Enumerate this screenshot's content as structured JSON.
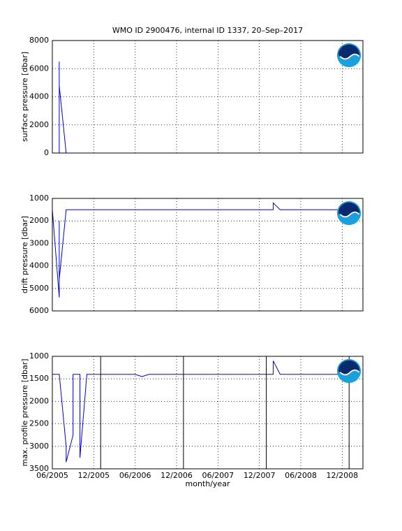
{
  "chart_data": [
    {
      "type": "line",
      "title": "WMO ID 2900476, internal ID 1337, 20–Sep–2017",
      "y_label": "surface pressure [dbar]",
      "xlim": [
        "2005-06",
        "2009-03"
      ],
      "xticks": [
        "2005-06",
        "2005-12",
        "2006-06",
        "2006-12",
        "2007-06",
        "2007-12",
        "2008-06",
        "2008-12"
      ],
      "ylim": [
        0,
        8000
      ],
      "yticks": [
        0,
        2000,
        4000,
        6000,
        8000
      ],
      "grid": true,
      "series": [
        {
          "color": "#0000cc",
          "x": [
            "2005-07",
            "2005-07",
            "2005-07",
            "2005-07",
            "2005-08",
            "2009-02"
          ],
          "values": [
            0,
            6500,
            0,
            4800,
            0,
            0
          ]
        }
      ]
    },
    {
      "type": "line",
      "y_label": "drift pressure [dbar]",
      "xlim": [
        "2005-06",
        "2009-03"
      ],
      "xticks": [
        "2005-06",
        "2005-12",
        "2006-06",
        "2006-12",
        "2007-06",
        "2007-12",
        "2008-06",
        "2008-12"
      ],
      "ylim": [
        6000,
        1000
      ],
      "yticks": [
        1000,
        2000,
        3000,
        4000,
        5000,
        6000
      ],
      "grid": true,
      "series": [
        {
          "color": "#0000cc",
          "x": [
            "2005-06",
            "2005-07",
            "2005-07",
            "2005-07",
            "2005-08",
            "2008-02",
            "2008-02",
            "2008-03",
            "2009-02"
          ],
          "values": [
            1500,
            5400,
            2000,
            4600,
            1500,
            1500,
            1200,
            1500,
            1500
          ]
        }
      ]
    },
    {
      "type": "line",
      "y_label": "max. profile pressure [dbar]",
      "x_label": "month/year",
      "xlim": [
        "2005-06",
        "2009-03"
      ],
      "xticks": [
        {
          "value": "2005-06",
          "label": "06/2005"
        },
        {
          "value": "2005-12",
          "label": "12/2005"
        },
        {
          "value": "2006-06",
          "label": "06/2006"
        },
        {
          "value": "2006-12",
          "label": "12/2006"
        },
        {
          "value": "2007-06",
          "label": "06/2007"
        },
        {
          "value": "2007-12",
          "label": "12/2007"
        },
        {
          "value": "2008-06",
          "label": "06/2008"
        },
        {
          "value": "2008-12",
          "label": "12/2008"
        }
      ],
      "ylim": [
        3500,
        1000
      ],
      "yticks": [
        1000,
        1500,
        2000,
        2500,
        3000,
        3500
      ],
      "grid": true,
      "vlines": [
        "2006-01",
        "2007-01",
        "2008-01",
        "2009-01"
      ],
      "vline_color": "#000000",
      "series": [
        {
          "color": "#0000cc",
          "x": [
            "2005-06",
            "2005-07",
            "2005-08",
            "2005-08",
            "2005-09",
            "2005-09",
            "2005-10",
            "2005-10",
            "2005-11",
            "2006-06",
            "2006-07",
            "2006-08",
            "2008-02",
            "2008-02",
            "2008-03",
            "2009-02"
          ],
          "values": [
            1400,
            1400,
            3000,
            3350,
            2750,
            1400,
            1400,
            3250,
            1400,
            1400,
            1450,
            1400,
            1400,
            1100,
            1400,
            1400
          ]
        }
      ]
    }
  ]
}
